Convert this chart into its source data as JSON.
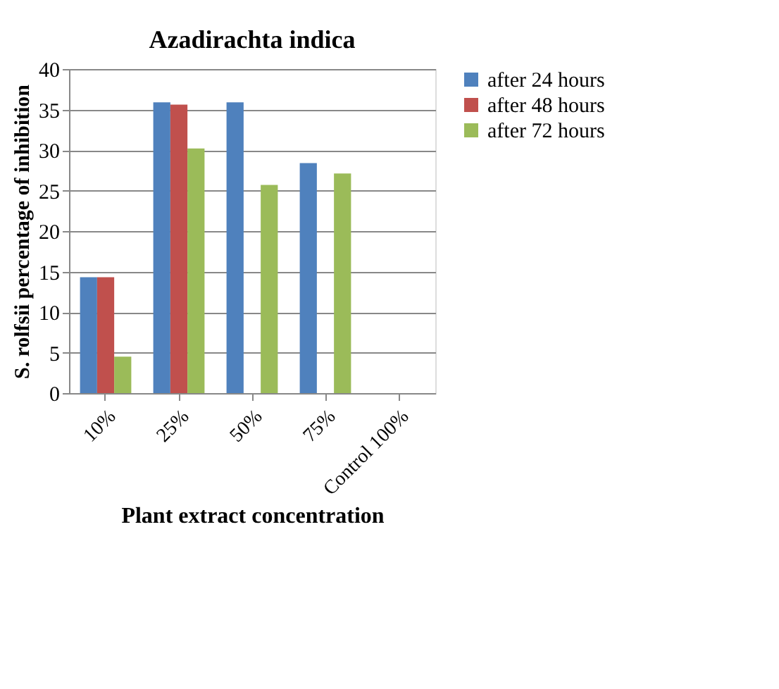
{
  "chart_data": {
    "type": "bar",
    "title": "Azadirachta indica",
    "xlabel": "Plant extract concentration",
    "ylabel": "S. rolfsii percentage of inhibition",
    "categories": [
      "10%",
      "25%",
      "50%",
      "75%",
      "Control 100%"
    ],
    "series": [
      {
        "name": "after 24 hours",
        "color": "#4f81bd",
        "values": [
          14.3,
          35.9,
          35.9,
          28.4,
          0
        ]
      },
      {
        "name": "after 48 hours",
        "color": "#c0504d",
        "values": [
          14.3,
          35.6,
          0,
          0,
          0
        ]
      },
      {
        "name": "after 72 hours",
        "color": "#9bbb59",
        "values": [
          4.5,
          30.2,
          25.7,
          27.1,
          0
        ]
      }
    ],
    "ylim": [
      0,
      40
    ],
    "yticks": [
      0,
      5,
      10,
      15,
      20,
      25,
      30,
      35,
      40
    ],
    "grid": "y",
    "legend": "right"
  }
}
